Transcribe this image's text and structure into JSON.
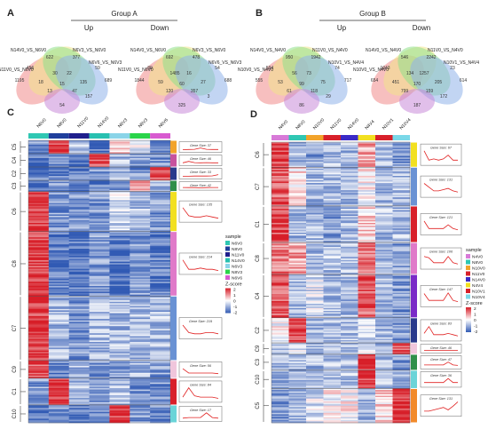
{
  "panels": {
    "A": {
      "letter": "A",
      "group_title": "Group A",
      "up_label": "Up",
      "down_label": "Down",
      "up_venn": {
        "set_labels": [
          "N11V0_VS_N6V0",
          "N14V0_VS_N6V0",
          "N6V3_VS_N6V0",
          "N6V6_VS_N6V3"
        ],
        "numbers": [
          "1195",
          "456",
          "622",
          "377",
          "59",
          "689",
          "18",
          "30",
          "22",
          "135",
          "13",
          "15",
          "47",
          "54",
          "157"
        ],
        "colors": [
          "#f08a8a",
          "#f2e48a",
          "#8fe08a",
          "#8fb3ea",
          "#c98ad8"
        ]
      },
      "down_venn": {
        "set_labels": [
          "N11V0_VS_N6V0",
          "N14V0_VS_N6V0",
          "N6V3_VS_N6V0",
          "N6V6_VS_N6V3"
        ],
        "numbers": [
          "1844",
          "89",
          "692",
          "478",
          "54",
          "688",
          "59",
          "1485",
          "16",
          "27",
          "120",
          "60",
          "357",
          "325",
          "3"
        ],
        "colors": [
          "#f08a8a",
          "#f2e48a",
          "#8fe08a",
          "#8fb3ea",
          "#c98ad8"
        ]
      }
    },
    "B": {
      "letter": "B",
      "group_title": "Group B",
      "up_label": "Up",
      "down_label": "Down",
      "up_venn": {
        "set_labels": [
          "N10V0_VS_N4V0",
          "N14V0_VS_N4V0",
          "N11V0_VS_N4V0",
          "N10V1_VS_N4V4"
        ],
        "numbers": [
          "555",
          "594",
          "950",
          "1942",
          "74",
          "717",
          "53",
          "56",
          "73",
          "75",
          "61",
          "99",
          "118",
          "86",
          "29"
        ],
        "colors": [
          "#f08a8a",
          "#f2e48a",
          "#8fe08a",
          "#8fb3ea",
          "#c98ad8"
        ]
      },
      "down_venn": {
        "set_labels": [
          "N10V0_VS_N4V0",
          "N14V0_VS_N4V0",
          "N11V0_VS_N4V0",
          "N10V1_VS_N4V4"
        ],
        "numbers": [
          "654",
          "1043",
          "546",
          "2242",
          "23",
          "614",
          "451",
          "134",
          "1257",
          "205",
          "799",
          "170",
          "159",
          "187",
          "172"
        ],
        "colors": [
          "#f08a8a",
          "#f2e48a",
          "#8fe08a",
          "#8fb3ea",
          "#c98ad8"
        ]
      }
    },
    "C": {
      "letter": "C",
      "columns": [
        "N6V0",
        "N8V0",
        "N11V0",
        "N14V0",
        "N6V3",
        "N8V3",
        "N6V6"
      ],
      "column_colors": [
        "#2fc7b3",
        "#1f3f9c",
        "#1f1f8c",
        "#28c0b0",
        "#8ad4e8",
        "#2ad44a",
        "#d85ad0"
      ],
      "clusters": [
        {
          "name": "C5",
          "rows": 12,
          "color": "#f2a32a",
          "profile": [
            0.2,
            0.9,
            0.3,
            0.1,
            0.6,
            0.4,
            0.2
          ],
          "gene_size": "Gene Size: 37",
          "pattern": [
            0,
            0.1,
            0.2,
            0.95,
            0.2,
            0.1,
            0.1
          ]
        },
        {
          "name": "C4",
          "rows": 12,
          "color": "#c7529e",
          "profile": [
            0.1,
            0.2,
            0.1,
            0.9,
            0.3,
            0.2,
            0.2
          ],
          "gene_size": "Gene Size: 46",
          "pattern": [
            0.1,
            0.9,
            0.2,
            0.1,
            0.2,
            0.1,
            0.1
          ]
        },
        {
          "name": "C2",
          "rows": 12,
          "color": "#2a3a8c",
          "profile": [
            0.1,
            0.1,
            0.1,
            0.2,
            0.3,
            0.2,
            0.9
          ],
          "gene_size": "Gene Size: 33",
          "pattern": [
            0.1,
            0.1,
            0.2,
            0.2,
            0.2,
            0.3,
            0.95
          ]
        },
        {
          "name": "C3",
          "rows": 10,
          "color": "#2f8f4a",
          "profile": [
            0.1,
            0.2,
            0.1,
            0.1,
            0.2,
            0.8,
            0.3
          ],
          "gene_size": "Gene Size: 42",
          "pattern": [
            0.1,
            0.2,
            0.2,
            0.9,
            0.2,
            0.1,
            0.1
          ]
        },
        {
          "name": "C6",
          "rows": 36,
          "color": "#f2e020",
          "profile": [
            0.95,
            0.2,
            0.2,
            0.2,
            0.4,
            0.3,
            0.2
          ],
          "gene_size": "Gene Size: 135",
          "pattern": [
            0.95,
            0.3,
            0.2,
            0.2,
            0.3,
            0.2,
            0.1
          ]
        },
        {
          "name": "C8",
          "rows": 58,
          "color": "#e07ac9",
          "profile": [
            0.95,
            0.1,
            0.1,
            0.2,
            0.1,
            0.2,
            0.1
          ],
          "gene_size": "Gene Size: 214",
          "pattern": [
            0.95,
            0.2,
            0.2,
            0.3,
            0.2,
            0.2,
            0.1
          ]
        },
        {
          "name": "C7",
          "rows": 58,
          "color": "#6a92d4",
          "profile": [
            0.95,
            0.3,
            0.2,
            0.3,
            0.3,
            0.3,
            0.3
          ],
          "gene_size": "Gene Size: 219",
          "pattern": [
            0.9,
            0.3,
            0.2,
            0.2,
            0.3,
            0.3,
            0.2
          ]
        },
        {
          "name": "C9",
          "rows": 16,
          "color": "#f0c6dc",
          "profile": [
            0.9,
            0.1,
            0.3,
            0.2,
            0.2,
            0.3,
            0.2
          ],
          "gene_size": "Gene Size: 56",
          "pattern": [
            0.9,
            0.2,
            0.2,
            0.2,
            0.2,
            0.2,
            0.1
          ]
        },
        {
          "name": "C1",
          "rows": 24,
          "color": "#d8202a",
          "profile": [
            0.2,
            0.95,
            0.3,
            0.2,
            0.3,
            0.2,
            0.2
          ],
          "gene_size": "Gene Size: 84",
          "pattern": [
            0.2,
            0.95,
            0.3,
            0.2,
            0.2,
            0.2,
            0.1
          ]
        },
        {
          "name": "C10",
          "rows": 16,
          "color": "#6ad4d8",
          "profile": [
            0.1,
            0.2,
            0.1,
            0.2,
            0.95,
            0.2,
            0.2
          ],
          "gene_size": "Gene Size: 17",
          "pattern": [
            0.1,
            0.2,
            0.2,
            0.2,
            0.95,
            0.2,
            0.1
          ]
        }
      ],
      "legend": {
        "title": "sample",
        "items": [
          "N6V0",
          "N8V0",
          "N11V0",
          "N14V0",
          "N6V3",
          "N8V3",
          "N6V6"
        ],
        "zscore_title": "Z-score",
        "ticks": [
          "2",
          "1",
          "0",
          "-1",
          "-2"
        ]
      }
    },
    "D": {
      "letter": "D",
      "columns": [
        "N4V0",
        "N8V0",
        "N10V0",
        "N11V0",
        "N14V0",
        "N4V4",
        "N10V1",
        "N10V4"
      ],
      "column_colors": [
        "#d87ad8",
        "#2fc7b3",
        "#f2a32a",
        "#d8202a",
        "#3a2ac7",
        "#f2e020",
        "#d8202a",
        "#7ad8e8"
      ],
      "clusters": [
        {
          "name": "C6",
          "rows": 22,
          "color": "#f2e020",
          "profile": [
            0.95,
            0.3,
            0.2,
            0.3,
            0.3,
            0.7,
            0.3,
            0.2
          ],
          "gene_size": "Gene Size: 67",
          "pattern": [
            0.95,
            0.2,
            0.3,
            0.2,
            0.3,
            0.6,
            0.2,
            0.2
          ]
        },
        {
          "name": "C7",
          "rows": 34,
          "color": "#6a92d4",
          "profile": [
            0.85,
            0.6,
            0.3,
            0.3,
            0.3,
            0.5,
            0.3,
            0.3
          ],
          "gene_size": "Gene Size: 131",
          "pattern": [
            0.9,
            0.6,
            0.3,
            0.3,
            0.4,
            0.5,
            0.3,
            0.2
          ]
        },
        {
          "name": "C1",
          "rows": 32,
          "color": "#d8202a",
          "profile": [
            0.9,
            0.3,
            0.3,
            0.2,
            0.3,
            0.6,
            0.3,
            0.3
          ],
          "gene_size": "Gene Size: 121",
          "pattern": [
            0.9,
            0.3,
            0.3,
            0.3,
            0.3,
            0.6,
            0.3,
            0.2
          ]
        },
        {
          "name": "C8",
          "rows": 28,
          "color": "#e07ac9",
          "profile": [
            0.8,
            0.7,
            0.3,
            0.3,
            0.3,
            0.8,
            0.3,
            0.2
          ],
          "gene_size": "Gene Size: 106",
          "pattern": [
            0.8,
            0.7,
            0.3,
            0.3,
            0.3,
            0.8,
            0.3,
            0.2
          ]
        },
        {
          "name": "C4",
          "rows": 38,
          "color": "#7a2ac7",
          "profile": [
            0.85,
            0.3,
            0.4,
            0.3,
            0.3,
            0.85,
            0.3,
            0.2
          ],
          "gene_size": "Gene Size: 147",
          "pattern": [
            0.85,
            0.3,
            0.3,
            0.3,
            0.3,
            0.9,
            0.3,
            0.2
          ]
        },
        {
          "name": "C2",
          "rows": 22,
          "color": "#2a3a8c",
          "profile": [
            0.5,
            0.95,
            0.3,
            0.3,
            0.3,
            0.4,
            0.3,
            0.2
          ],
          "gene_size": "Gene Size: 83",
          "pattern": [
            0.4,
            0.95,
            0.3,
            0.3,
            0.3,
            0.4,
            0.3,
            0.2
          ]
        },
        {
          "name": "C9",
          "rows": 10,
          "color": "#f0c6dc",
          "profile": [
            0.3,
            0.4,
            0.3,
            0.3,
            0.3,
            0.4,
            0.3,
            0.9
          ],
          "gene_size": "Gene Size: 46",
          "pattern": [
            0.3,
            0.3,
            0.3,
            0.3,
            0.3,
            0.3,
            0.4,
            0.9
          ]
        },
        {
          "name": "C3",
          "rows": 14,
          "color": "#2f8f4a",
          "profile": [
            0.3,
            0.3,
            0.3,
            0.3,
            0.3,
            0.95,
            0.3,
            0.2
          ],
          "gene_size": "Gene Size: 47",
          "pattern": [
            0.3,
            0.3,
            0.3,
            0.3,
            0.3,
            0.95,
            0.3,
            0.2
          ]
        },
        {
          "name": "C10",
          "rows": 16,
          "color": "#6ad4d8",
          "profile": [
            0.3,
            0.3,
            0.3,
            0.3,
            0.3,
            0.9,
            0.3,
            0.3
          ],
          "gene_size": "Gene Size: 36",
          "pattern": [
            0.3,
            0.3,
            0.3,
            0.3,
            0.3,
            0.9,
            0.3,
            0.3
          ]
        },
        {
          "name": "C5",
          "rows": 30,
          "color": "#f28a2a",
          "profile": [
            0.2,
            0.3,
            0.4,
            0.5,
            0.5,
            0.3,
            0.6,
            0.95
          ],
          "gene_size": "Gene Size: 131",
          "pattern": [
            0.2,
            0.2,
            0.3,
            0.4,
            0.5,
            0.3,
            0.6,
            0.95
          ]
        }
      ],
      "legend": {
        "title": "sample",
        "items": [
          "N4V0",
          "N8V0",
          "N10V0",
          "N11V0",
          "N14V0",
          "N4V4",
          "N10V1",
          "N10V4"
        ],
        "zscore_title": "Z-score",
        "ticks": [
          "2",
          "1",
          "0",
          "-1",
          "-2"
        ]
      }
    }
  }
}
